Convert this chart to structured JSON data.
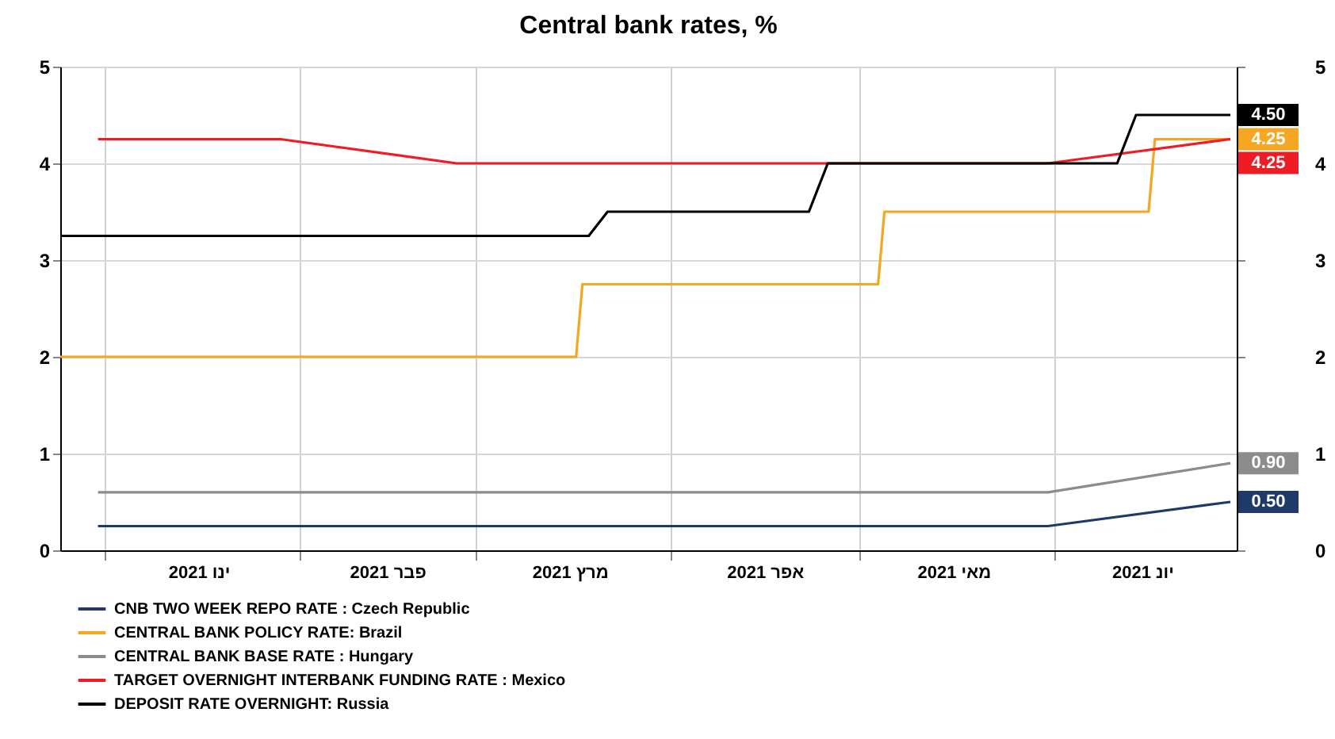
{
  "chart_data": {
    "type": "line",
    "title": "Central bank rates, %",
    "xlim": [
      "2020-12-25",
      "2021-06-30"
    ],
    "xticks": [
      {
        "value": "2021-01-01",
        "label": null
      },
      {
        "value": "2021-01-16",
        "label": "ינו 2021"
      },
      {
        "value": "2021-02-01",
        "label": null
      },
      {
        "value": "2021-02-15",
        "label": "פבר 2021"
      },
      {
        "value": "2021-03-01",
        "label": null
      },
      {
        "value": "2021-03-16",
        "label": "מרץ 2021"
      },
      {
        "value": "2021-04-01",
        "label": null
      },
      {
        "value": "2021-04-16",
        "label": "אפר 2021"
      },
      {
        "value": "2021-05-01",
        "label": null
      },
      {
        "value": "2021-05-16",
        "label": "מאי 2021"
      },
      {
        "value": "2021-06-01",
        "label": null
      },
      {
        "value": "2021-06-15",
        "label": "יונ 2021"
      }
    ],
    "ylim": [
      0,
      5
    ],
    "yticks": [
      0,
      1,
      2,
      3,
      4,
      5
    ],
    "y2lim": [
      0,
      5
    ],
    "y2ticks": [
      0,
      1,
      2,
      3,
      4,
      5
    ],
    "grid": true,
    "legend": "bottom left",
    "series": [
      {
        "name": "CNB TWO WEEK REPO RATE : Czech Republic",
        "color": "#1f3a68",
        "x": [
          "2020-12-31",
          "2021-05-31",
          "2021-06-29"
        ],
        "values": [
          0.25,
          0.25,
          0.5
        ],
        "value_labels": [
          null,
          null,
          "0.50"
        ]
      },
      {
        "name": "CENTRAL BANK POLICY RATE: Brazil",
        "color": "#f5a623",
        "x": [
          "2020-12-25",
          "2021-03-17",
          "2021-03-18",
          "2021-05-04",
          "2021-05-05",
          "2021-06-16",
          "2021-06-17",
          "2021-06-29"
        ],
        "values": [
          2,
          2,
          2.75,
          2.75,
          3.5,
          3.5,
          4.25,
          4.25
        ],
        "value_labels": [
          null,
          null,
          null,
          null,
          null,
          null,
          null,
          "4.25"
        ]
      },
      {
        "name": "CENTRAL BANK BASE RATE : Hungary",
        "color": "#8c8c8c",
        "x": [
          "2020-12-31",
          "2021-05-31",
          "2021-06-29"
        ],
        "values": [
          0.6,
          0.6,
          0.9
        ],
        "value_labels": [
          null,
          null,
          "0.90"
        ]
      },
      {
        "name": "TARGET OVERNIGHT INTERBANK FUNDING RATE : Mexico",
        "color": "#ee1c25",
        "x": [
          "2020-12-31",
          "2021-01-29",
          "2021-02-26",
          "2021-05-31",
          "2021-06-29"
        ],
        "values": [
          4.25,
          4.25,
          4.0,
          4.0,
          4.25
        ],
        "value_labels": [
          null,
          null,
          null,
          null,
          "4.25"
        ]
      },
      {
        "name": "DEPOSIT RATE OVERNIGHT: Russia",
        "color": "#000000",
        "x": [
          "2020-12-25",
          "2021-03-19",
          "2021-03-22",
          "2021-04-23",
          "2021-04-26",
          "2021-06-11",
          "2021-06-14",
          "2021-06-29"
        ],
        "values": [
          3.25,
          3.25,
          3.5,
          3.5,
          4.0,
          4.0,
          4.5,
          4.5
        ],
        "value_labels": [
          null,
          null,
          null,
          null,
          null,
          null,
          null,
          "4.50"
        ]
      }
    ]
  }
}
